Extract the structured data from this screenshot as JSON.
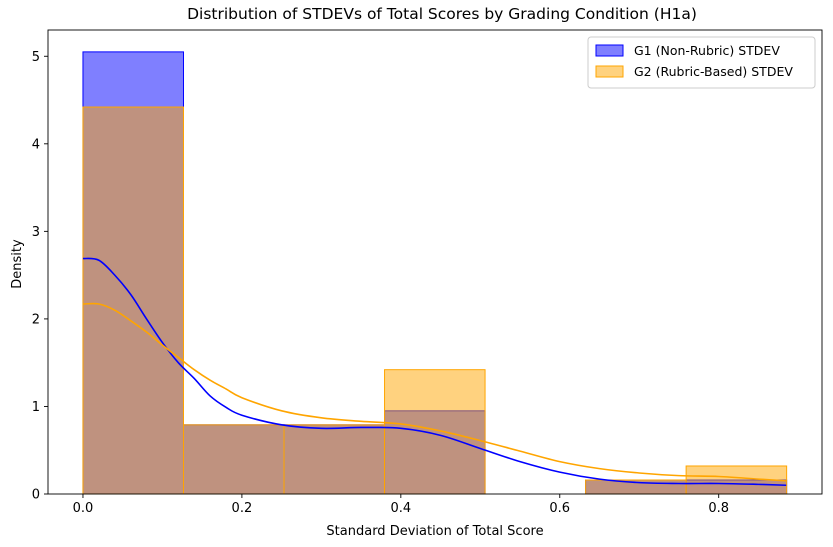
{
  "chart_data": {
    "type": "histogram",
    "title": "Distribution of STDEVs of Total Scores by Grading Condition (H1a)",
    "xlabel": "Standard Deviation of Total Score",
    "ylabel": "Density",
    "xlim": [
      -0.044,
      0.93
    ],
    "ylim": [
      0,
      5.3
    ],
    "xticks": [
      0.0,
      0.2,
      0.4,
      0.6,
      0.8
    ],
    "xtick_labels": [
      "0.0",
      "0.2",
      "0.4",
      "0.6",
      "0.8"
    ],
    "yticks": [
      0,
      1,
      2,
      3,
      4,
      5
    ],
    "ytick_labels": [
      "0",
      "1",
      "2",
      "3",
      "4",
      "5"
    ],
    "bin_edges": [
      0.0,
      0.1265,
      0.253,
      0.3795,
      0.506,
      0.6325,
      0.759,
      0.8855
    ],
    "legend_position": "upper right",
    "series": [
      {
        "name": "G1 (Non-Rubric) STDEV",
        "color": "#0000ff",
        "fill_alpha": 0.5,
        "densities": [
          5.05,
          0.79,
          0.79,
          0.95,
          0.0,
          0.16,
          0.16
        ],
        "kde": {
          "x": [
            0.0,
            0.02,
            0.04,
            0.06,
            0.08,
            0.1,
            0.12,
            0.14,
            0.16,
            0.18,
            0.2,
            0.25,
            0.3,
            0.35,
            0.4,
            0.45,
            0.5,
            0.55,
            0.6,
            0.65,
            0.7,
            0.75,
            0.8,
            0.85,
            0.885
          ],
          "y": [
            2.69,
            2.67,
            2.5,
            2.28,
            2.0,
            1.73,
            1.5,
            1.32,
            1.12,
            0.99,
            0.9,
            0.79,
            0.75,
            0.76,
            0.75,
            0.67,
            0.52,
            0.37,
            0.25,
            0.17,
            0.13,
            0.12,
            0.12,
            0.11,
            0.1
          ]
        }
      },
      {
        "name": "G2 (Rubric-Based) STDEV",
        "color": "#ffa500",
        "fill_alpha": 0.5,
        "densities": [
          4.42,
          0.79,
          0.79,
          1.42,
          0.0,
          0.16,
          0.32
        ],
        "kde": {
          "x": [
            0.0,
            0.02,
            0.04,
            0.06,
            0.08,
            0.1,
            0.12,
            0.14,
            0.16,
            0.18,
            0.2,
            0.25,
            0.3,
            0.35,
            0.4,
            0.45,
            0.5,
            0.55,
            0.6,
            0.65,
            0.7,
            0.75,
            0.8,
            0.85,
            0.885
          ],
          "y": [
            2.17,
            2.17,
            2.1,
            1.98,
            1.85,
            1.7,
            1.56,
            1.42,
            1.3,
            1.2,
            1.1,
            0.95,
            0.87,
            0.83,
            0.8,
            0.72,
            0.61,
            0.49,
            0.37,
            0.29,
            0.24,
            0.21,
            0.2,
            0.17,
            0.15
          ]
        }
      }
    ]
  }
}
